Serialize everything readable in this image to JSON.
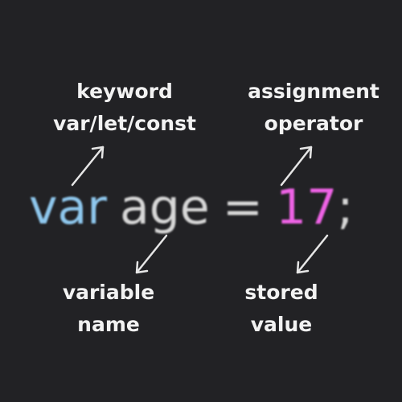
{
  "labels": {
    "keyword": [
      "keyword",
      "var/let/const"
    ],
    "assignment": [
      "assignment",
      "operator"
    ],
    "variable": [
      "variable",
      "name"
    ],
    "stored": [
      "stored",
      "value"
    ]
  },
  "code": {
    "keyword": "var",
    "name": "age",
    "operator": "=",
    "value": "17",
    "terminator": ";"
  },
  "colors": {
    "background": "#222225",
    "label_text": "#f2f2f2",
    "keyword": "#8fc8ee",
    "name": "#d8d8d8",
    "operator": "#d8d8d8",
    "value": "#ef63e6",
    "terminator": "#d8d8d8",
    "arrow": "#e6e6e6"
  }
}
